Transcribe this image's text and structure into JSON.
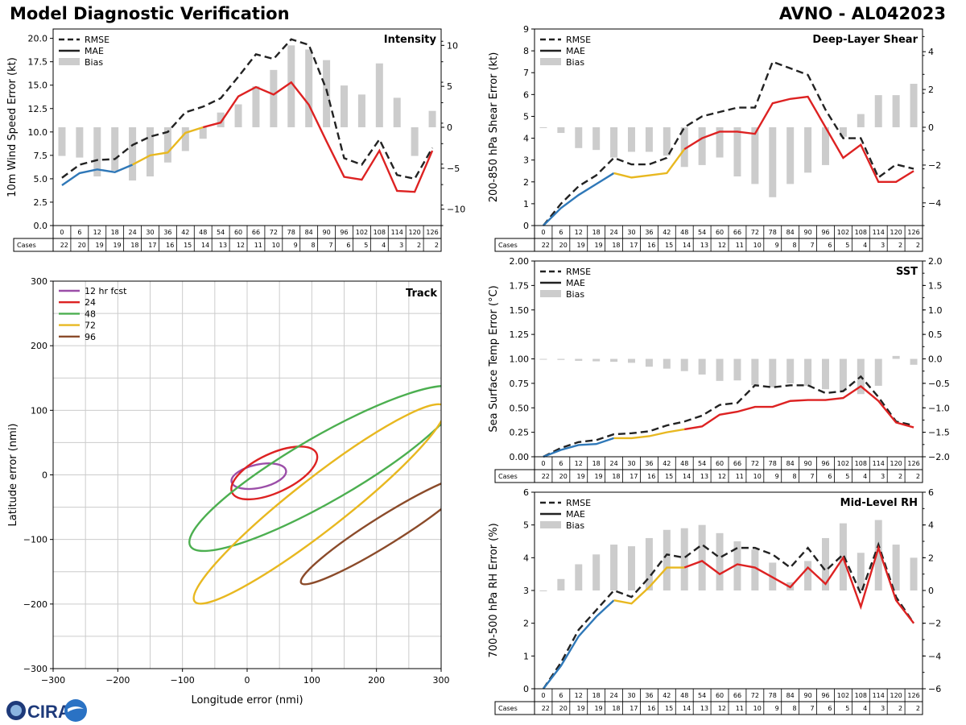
{
  "header": {
    "title": "Model Diagnostic Verification",
    "model_storm": "AVNO - AL042023"
  },
  "colors": {
    "rmse": "#222222",
    "bias": "#cccccc",
    "mae_early": "#2f78b8",
    "mae_mid": "#e8b820",
    "mae_late": "#dd2222",
    "grid": "#cccccc"
  },
  "cases_row": {
    "label": "Cases",
    "hours": [
      0,
      6,
      12,
      18,
      24,
      30,
      36,
      42,
      48,
      54,
      60,
      66,
      72,
      78,
      84,
      90,
      96,
      102,
      108,
      114,
      120,
      126
    ],
    "counts": [
      22,
      20,
      19,
      19,
      18,
      17,
      16,
      15,
      14,
      13,
      12,
      11,
      10,
      9,
      8,
      7,
      6,
      5,
      4,
      3,
      2,
      2
    ]
  },
  "legend_labels": {
    "rmse": "RMSE",
    "mae": "MAE",
    "bias": "Bias"
  },
  "logo": {
    "text": "CIRA"
  },
  "chart_data": [
    {
      "type": "line",
      "id": "intensity",
      "title": "Intensity",
      "ylabel": "10m Wind Speed Error (kt)",
      "x": [
        0,
        6,
        12,
        18,
        24,
        30,
        36,
        42,
        48,
        54,
        60,
        66,
        72,
        78,
        84,
        90,
        96,
        102,
        108,
        114,
        120,
        126
      ],
      "ylim": [
        0,
        21
      ],
      "yticks": [
        0.0,
        2.5,
        5.0,
        7.5,
        10.0,
        12.5,
        15.0,
        17.5,
        20.0
      ],
      "y2lim": [
        -12,
        12
      ],
      "y2ticks": [
        -10,
        -5,
        0,
        5,
        10
      ],
      "series": [
        {
          "name": "RMSE",
          "values": [
            5.1,
            6.5,
            7.0,
            7.1,
            8.6,
            9.5,
            10.0,
            12.1,
            12.7,
            13.6,
            15.9,
            18.3,
            17.8,
            19.9,
            19.3,
            14.5,
            7.2,
            6.5,
            9.2,
            5.4,
            5.0,
            8.3
          ]
        },
        {
          "name": "MAE",
          "values": [
            4.3,
            5.6,
            6.0,
            5.7,
            6.5,
            7.5,
            7.8,
            9.9,
            10.5,
            11.0,
            13.8,
            14.8,
            14.0,
            15.3,
            12.9,
            9.0,
            5.2,
            4.9,
            8.0,
            3.7,
            3.6,
            8.0
          ]
        },
        {
          "name": "Bias",
          "values": [
            -3.5,
            -3.7,
            -6.0,
            -5.3,
            -6.5,
            -6.0,
            -4.3,
            -2.9,
            -1.4,
            1.8,
            2.8,
            5.0,
            7.0,
            10.0,
            9.5,
            8.2,
            5.1,
            4.0,
            7.8,
            3.6,
            -3.5,
            2.0
          ]
        }
      ]
    },
    {
      "type": "line",
      "id": "shear",
      "title": "Deep-Layer Shear",
      "ylabel": "200-850 hPa Shear Error (kt)",
      "x": [
        0,
        6,
        12,
        18,
        24,
        30,
        36,
        42,
        48,
        54,
        60,
        66,
        72,
        78,
        84,
        90,
        96,
        102,
        108,
        114,
        120,
        126
      ],
      "ylim": [
        0,
        9
      ],
      "yticks": [
        0,
        1,
        2,
        3,
        4,
        5,
        6,
        7,
        8,
        9
      ],
      "y2lim": [
        -5.2,
        5.2
      ],
      "y2ticks": [
        -4,
        -2,
        0,
        2,
        4
      ],
      "series": [
        {
          "name": "RMSE",
          "values": [
            0,
            1.0,
            1.8,
            2.3,
            3.1,
            2.8,
            2.8,
            3.1,
            4.5,
            5.0,
            5.2,
            5.4,
            5.4,
            7.5,
            7.2,
            6.9,
            5.3,
            4.0,
            4.0,
            2.2,
            2.8,
            2.6
          ]
        },
        {
          "name": "MAE",
          "values": [
            0,
            0.8,
            1.4,
            1.9,
            2.4,
            2.2,
            2.3,
            2.4,
            3.5,
            4.0,
            4.3,
            4.3,
            4.2,
            5.6,
            5.8,
            5.9,
            4.5,
            3.1,
            3.7,
            2.0,
            2.0,
            2.5
          ]
        },
        {
          "name": "Bias",
          "values": [
            0,
            -0.3,
            -1.1,
            -1.2,
            -1.6,
            -1.3,
            -1.3,
            -1.5,
            -2.1,
            -2.0,
            -1.6,
            -2.6,
            -3.0,
            -3.7,
            -3.0,
            -2.4,
            -2.0,
            -0.5,
            0.7,
            1.7,
            1.7,
            2.3
          ]
        }
      ]
    },
    {
      "type": "line",
      "id": "sst",
      "title": "SST",
      "ylabel": "Sea Surface Temp Error (°C)",
      "x": [
        0,
        6,
        12,
        18,
        24,
        30,
        36,
        42,
        48,
        54,
        60,
        66,
        72,
        78,
        84,
        90,
        96,
        102,
        108,
        114,
        120,
        126
      ],
      "ylim": [
        0,
        2
      ],
      "yticks": [
        0.0,
        0.25,
        0.5,
        0.75,
        1.0,
        1.25,
        1.5,
        1.75,
        2.0
      ],
      "y2lim": [
        -2,
        2
      ],
      "y2ticks": [
        -2.0,
        -1.5,
        -1.0,
        -0.5,
        0.0,
        0.5,
        1.0,
        1.5,
        2.0
      ],
      "series": [
        {
          "name": "RMSE",
          "values": [
            0,
            0.09,
            0.15,
            0.17,
            0.23,
            0.24,
            0.26,
            0.32,
            0.36,
            0.42,
            0.53,
            0.55,
            0.73,
            0.71,
            0.73,
            0.73,
            0.65,
            0.67,
            0.82,
            0.61,
            0.36,
            0.32
          ]
        },
        {
          "name": "MAE",
          "values": [
            0,
            0.07,
            0.12,
            0.13,
            0.19,
            0.19,
            0.21,
            0.25,
            0.28,
            0.31,
            0.43,
            0.46,
            0.51,
            0.51,
            0.57,
            0.58,
            0.58,
            0.6,
            0.72,
            0.57,
            0.35,
            0.3
          ]
        },
        {
          "name": "Bias",
          "values": [
            0,
            -0.02,
            -0.04,
            -0.05,
            -0.06,
            -0.08,
            -0.16,
            -0.2,
            -0.25,
            -0.32,
            -0.45,
            -0.44,
            -0.54,
            -0.58,
            -0.5,
            -0.55,
            -0.62,
            -0.65,
            -0.72,
            -0.55,
            0.06,
            -0.12
          ]
        }
      ]
    },
    {
      "type": "line",
      "id": "rh",
      "title": "Mid-Level RH",
      "ylabel": "700-500 hPa RH Error (%)",
      "x": [
        0,
        6,
        12,
        18,
        24,
        30,
        36,
        42,
        48,
        54,
        60,
        66,
        72,
        78,
        84,
        90,
        96,
        102,
        108,
        114,
        120,
        126
      ],
      "ylim": [
        0,
        6
      ],
      "yticks": [
        0,
        1,
        2,
        3,
        4,
        5,
        6
      ],
      "y2lim": [
        -6,
        6
      ],
      "y2ticks": [
        -6,
        -4,
        -2,
        0,
        2,
        4,
        6
      ],
      "series": [
        {
          "name": "RMSE",
          "values": [
            0,
            0.8,
            1.8,
            2.4,
            3.0,
            2.8,
            3.4,
            4.1,
            4.0,
            4.4,
            4.0,
            4.3,
            4.3,
            4.1,
            3.7,
            4.3,
            3.6,
            4.1,
            2.9,
            4.4,
            2.8,
            2.0
          ]
        },
        {
          "name": "MAE",
          "values": [
            0,
            0.7,
            1.6,
            2.2,
            2.7,
            2.6,
            3.1,
            3.7,
            3.7,
            3.9,
            3.5,
            3.8,
            3.7,
            3.4,
            3.1,
            3.7,
            3.2,
            4.0,
            2.5,
            4.3,
            2.7,
            2.0
          ]
        },
        {
          "name": "Bias",
          "values": [
            0,
            0.7,
            1.6,
            2.2,
            2.8,
            2.7,
            3.2,
            3.7,
            3.8,
            4.0,
            3.5,
            3.0,
            2.5,
            1.7,
            0.5,
            1.8,
            3.2,
            4.1,
            2.3,
            4.3,
            2.8,
            2.0
          ]
        }
      ]
    },
    {
      "type": "scatter",
      "id": "track",
      "title": "Track",
      "xlabel": "Longitude error (nmi)",
      "ylabel": "Latitude error (nmi)",
      "xlim": [
        -300,
        300
      ],
      "ylim": [
        -300,
        300
      ],
      "xticks": [
        -300,
        -200,
        -100,
        0,
        100,
        200,
        300
      ],
      "yticks": [
        -300,
        -200,
        -100,
        0,
        100,
        200,
        300
      ],
      "legend": [
        "12 hr fcst",
        "24",
        "48",
        "72",
        "96"
      ],
      "series": [
        {
          "name": "12 hr fcst",
          "color": "#9b4ea8",
          "center": [
            18,
            -2
          ],
          "semi_major": 43,
          "semi_minor": 18,
          "angle_deg": 12
        },
        {
          "name": "24",
          "color": "#dd2222",
          "center": [
            42,
            3
          ],
          "semi_major": 72,
          "semi_minor": 30,
          "angle_deg": 25
        },
        {
          "name": "48",
          "color": "#4caf50",
          "center": [
            120,
            10
          ],
          "semi_major": 240,
          "semi_minor": 50,
          "angle_deg": 30
        },
        {
          "name": "72",
          "color": "#e8b820",
          "center": [
            112,
            -45
          ],
          "semi_major": 245,
          "semi_minor": 40,
          "angle_deg": 38
        },
        {
          "name": "96",
          "color": "#8b4b2a",
          "center": [
            215,
            -85
          ],
          "semi_major": 155,
          "semi_minor": 22,
          "angle_deg": 32
        }
      ]
    }
  ]
}
